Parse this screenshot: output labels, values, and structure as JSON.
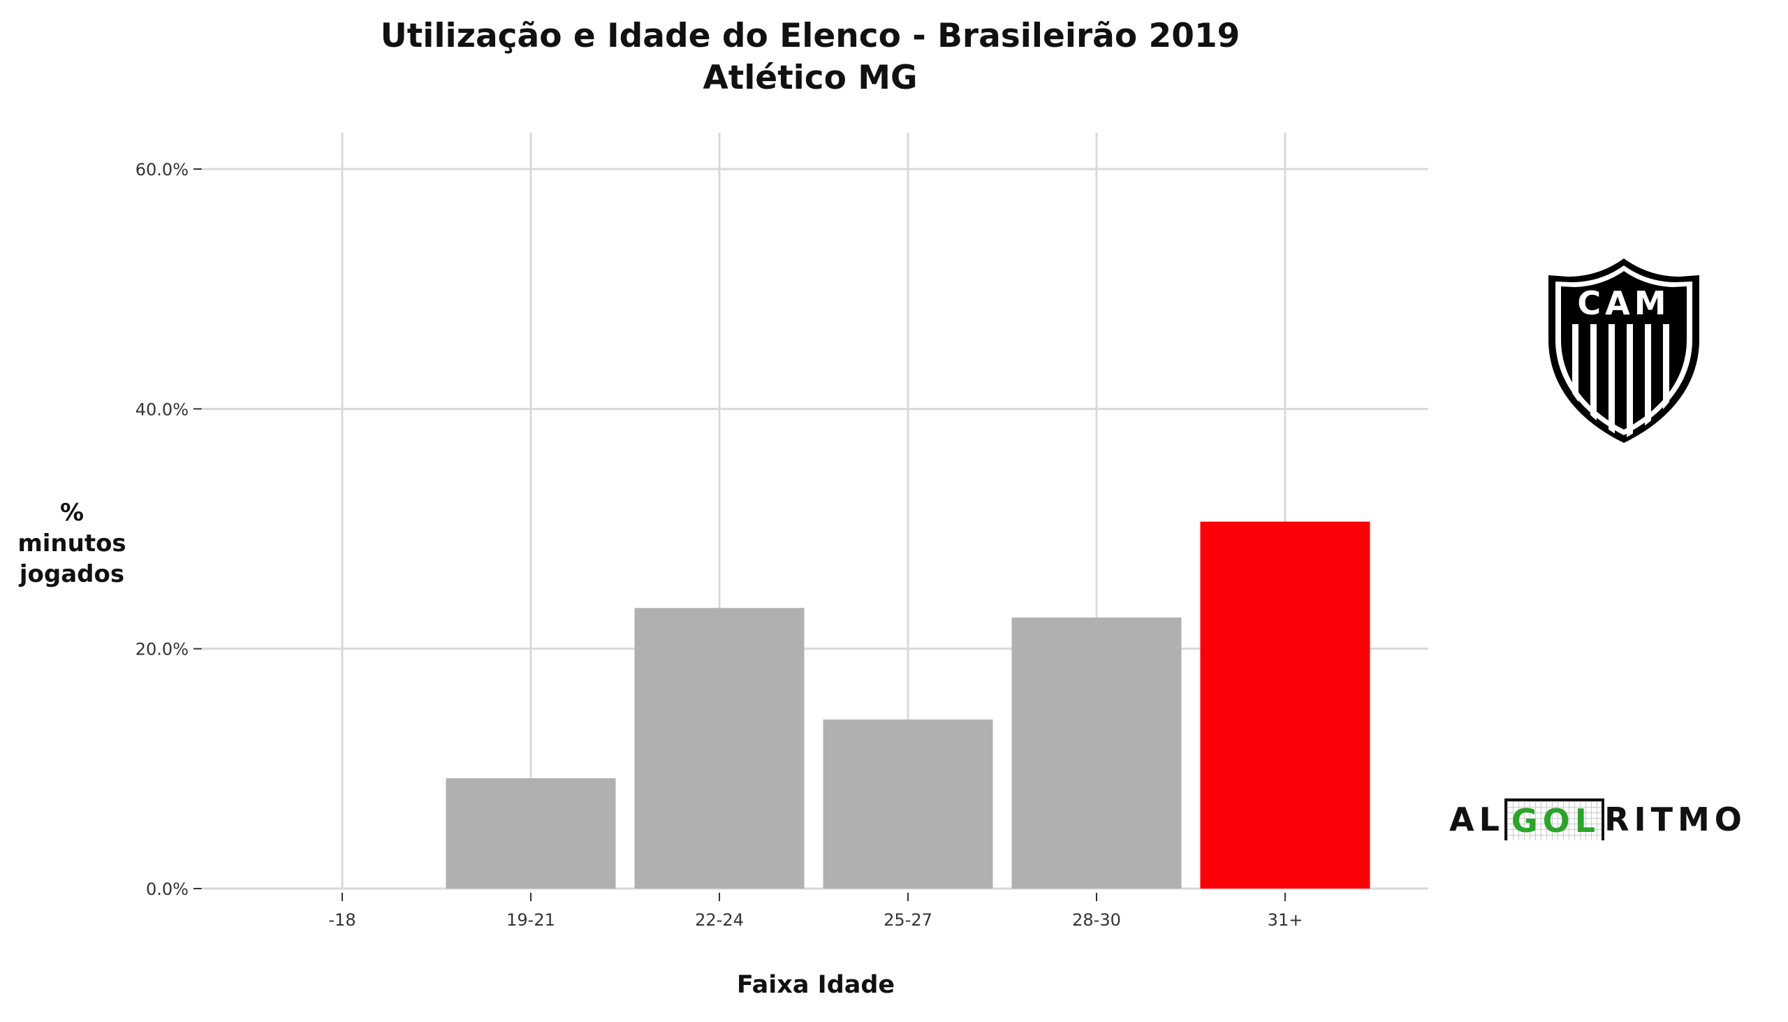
{
  "chart_data": {
    "type": "bar",
    "title": "Utilização e Idade do Elenco - Brasileirão 2019",
    "subtitle": "Atlético MG",
    "xlabel": "Faixa Idade",
    "ylabel_lines": [
      "% minutos",
      "jogados"
    ],
    "categories": [
      "-18",
      "19-21",
      "22-24",
      "25-27",
      "28-30",
      "31+"
    ],
    "values": [
      0.0,
      9.2,
      23.4,
      14.1,
      22.6,
      30.6
    ],
    "highlight_index": 5,
    "ylim": [
      0,
      60
    ],
    "yticks": [
      0,
      20,
      40,
      60
    ],
    "ytick_labels": [
      "0.0%",
      "20.0%",
      "40.0%",
      "60.0%"
    ],
    "grid": true,
    "colors": {
      "bar": "#b0b0b0",
      "highlight": "#fb0007",
      "grid": "#d9d9d9"
    }
  },
  "crest": {
    "text": "CAM"
  },
  "brand": {
    "pre": "AL",
    "mid": "GOL",
    "post": "RITMO"
  }
}
